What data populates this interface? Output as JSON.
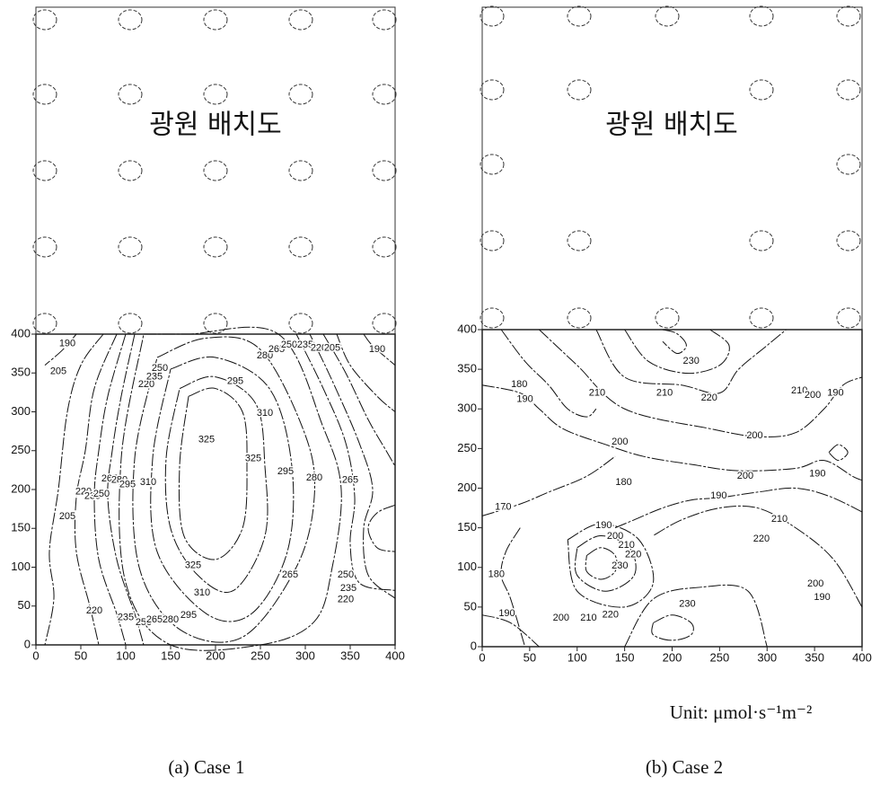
{
  "chart_data": [
    {
      "type": "contour",
      "title": "(a) Case 1",
      "inset_label": "광원 배치도",
      "xlim": [
        0,
        400
      ],
      "ylim": [
        0,
        400
      ],
      "xticks": [
        0,
        50,
        100,
        150,
        200,
        250,
        300,
        350,
        400
      ],
      "yticks": [
        0,
        50,
        100,
        150,
        200,
        250,
        300,
        350,
        400
      ],
      "contour_labels": {
        "x": [
          35,
          25,
          123,
          132,
          138,
          255,
          268,
          282,
          300,
          315,
          330,
          380,
          222,
          255,
          190,
          242,
          278,
          310,
          350,
          82,
          93,
          102,
          125,
          53,
          63,
          73,
          35,
          175,
          185,
          283,
          345,
          348,
          345,
          65,
          100,
          120,
          132,
          150,
          170
        ],
        "y": [
          388,
          352,
          335,
          345,
          356,
          372,
          380,
          386,
          386,
          382,
          382,
          380,
          339,
          298,
          264,
          240,
          223,
          215,
          212,
          214,
          212,
          206,
          209,
          197,
          191,
          194,
          165,
          102,
          67,
          90,
          90,
          73,
          58,
          44,
          35,
          29,
          32,
          32,
          38
        ],
        "values": [
          190,
          205,
          220,
          235,
          250,
          280,
          265,
          250,
          235,
          220,
          205,
          190,
          295,
          310,
          325,
          325,
          295,
          280,
          265,
          265,
          280,
          295,
          310,
          220,
          235,
          250,
          205,
          325,
          310,
          265,
          250,
          235,
          220,
          220,
          235,
          250,
          265,
          280,
          295
        ]
      },
      "contours": [
        {
          "level": 190,
          "x": [
            45,
            30,
            10
          ],
          "y": [
            400,
            380,
            360
          ]
        },
        {
          "level": 205,
          "x": [
            75,
            50,
            35,
            25,
            15,
            20,
            10
          ],
          "y": [
            400,
            360,
            300,
            200,
            120,
            60,
            0
          ]
        },
        {
          "level": 220,
          "x": [
            90,
            65,
            55,
            45,
            45,
            60,
            70
          ],
          "y": [
            400,
            330,
            250,
            190,
            120,
            50,
            0
          ]
        },
        {
          "level": 235,
          "x": [
            100,
            80,
            70,
            65,
            70,
            90,
            100
          ],
          "y": [
            400,
            320,
            250,
            190,
            110,
            40,
            0
          ]
        },
        {
          "level": 250,
          "x": [
            110,
            95,
            85,
            80,
            90,
            110,
            120
          ],
          "y": [
            400,
            320,
            250,
            190,
            110,
            40,
            0
          ]
        },
        {
          "level": 265,
          "x": [
            120,
            170,
            270,
            320,
            340,
            330,
            310,
            250,
            150,
            100,
            95,
            120
          ],
          "y": [
            400,
            400,
            400,
            280,
            200,
            100,
            30,
            0,
            0,
            80,
            240,
            400
          ]
        },
        {
          "level": 280,
          "x": [
            135,
            190,
            250,
            300,
            310,
            290,
            230,
            160,
            115,
            110,
            135
          ],
          "y": [
            370,
            395,
            380,
            270,
            190,
            100,
            10,
            20,
            100,
            240,
            370
          ]
        },
        {
          "level": 295,
          "x": [
            150,
            200,
            260,
            285,
            280,
            240,
            190,
            135,
            130,
            150
          ],
          "y": [
            355,
            370,
            330,
            230,
            120,
            40,
            40,
            120,
            240,
            355
          ]
        },
        {
          "level": 310,
          "x": [
            160,
            200,
            245,
            255,
            255,
            220,
            180,
            150,
            145,
            160
          ],
          "y": [
            330,
            345,
            310,
            230,
            140,
            70,
            90,
            150,
            240,
            330
          ]
        },
        {
          "level": 325,
          "x": [
            170,
            200,
            230,
            235,
            230,
            200,
            165,
            160,
            170
          ],
          "y": [
            320,
            330,
            300,
            230,
            150,
            110,
            140,
            230,
            320
          ]
        },
        {
          "level": 190,
          "x": [
            365,
            375,
            400
          ],
          "y": [
            400,
            385,
            360
          ]
        },
        {
          "level": 205,
          "x": [
            335,
            350,
            380,
            400
          ],
          "y": [
            400,
            360,
            320,
            300
          ]
        },
        {
          "level": 220,
          "x": [
            320,
            345,
            370,
            390,
            400
          ],
          "y": [
            400,
            350,
            290,
            250,
            230
          ]
        },
        {
          "level": 235,
          "x": [
            305,
            330,
            360,
            375,
            365,
            370,
            400
          ],
          "y": [
            400,
            340,
            260,
            200,
            150,
            90,
            60
          ]
        },
        {
          "level": 250,
          "x": [
            290,
            320,
            345,
            355,
            350,
            360,
            400
          ],
          "y": [
            400,
            330,
            260,
            190,
            130,
            80,
            70
          ]
        },
        {
          "level": 235,
          "x": [
            400,
            380,
            370,
            380,
            400
          ],
          "y": [
            180,
            170,
            150,
            125,
            120
          ]
        }
      ]
    },
    {
      "type": "contour",
      "title": "(b) Case 2",
      "inset_label": "광원 배치도",
      "unit_label": "Unit:  μmol·s⁻¹m⁻²",
      "xlim": [
        0,
        400
      ],
      "ylim": [
        0,
        400
      ],
      "xticks": [
        0,
        50,
        100,
        150,
        200,
        250,
        300,
        350,
        400
      ],
      "yticks": [
        0,
        50,
        100,
        150,
        200,
        250,
        300,
        350,
        400
      ],
      "contour_labels": {
        "x": [
          220,
          239,
          334,
          348,
          372,
          39,
          45,
          121,
          192,
          145,
          287,
          149,
          249,
          277,
          353,
          22,
          128,
          140,
          152,
          159,
          145,
          313,
          294,
          15,
          351,
          358,
          26,
          83,
          112,
          135,
          216
        ],
        "y": [
          360,
          314,
          323,
          317,
          320,
          331,
          312,
          320,
          320,
          258,
          266,
          207,
          190,
          215,
          218,
          176,
          153,
          139,
          128,
          116,
          102,
          161,
          136,
          91,
          79,
          62,
          42,
          36,
          36,
          40,
          54
        ],
        "values": [
          230,
          220,
          210,
          200,
          190,
          180,
          190,
          210,
          210,
          200,
          200,
          180,
          190,
          200,
          190,
          170,
          190,
          200,
          210,
          220,
          230,
          210,
          220,
          180,
          200,
          190,
          190,
          200,
          210,
          220,
          230
        ]
      },
      "contours": [
        {
          "level": 230,
          "x": [
            190,
            205,
            215,
            205,
            190
          ],
          "y": [
            400,
            395,
            380,
            370,
            385
          ]
        },
        {
          "level": 220,
          "x": [
            150,
            175,
            215,
            250,
            260,
            240
          ],
          "y": [
            400,
            360,
            345,
            355,
            380,
            400
          ]
        },
        {
          "level": 210,
          "x": [
            120,
            150,
            210,
            250,
            270,
            300,
            320
          ],
          "y": [
            400,
            340,
            330,
            320,
            350,
            380,
            400
          ]
        },
        {
          "level": 200,
          "x": [
            60,
            100,
            150,
            240,
            290,
            330,
            360,
            380,
            400
          ],
          "y": [
            400,
            355,
            300,
            275,
            265,
            270,
            300,
            330,
            340
          ]
        },
        {
          "level": 190,
          "x": [
            20,
            45,
            70,
            90,
            110,
            120
          ],
          "y": [
            400,
            360,
            330,
            300,
            290,
            300
          ]
        },
        {
          "level": 180,
          "x": [
            0,
            40,
            60,
            85,
            130,
            170,
            220,
            270,
            330,
            360,
            390,
            400
          ],
          "y": [
            330,
            320,
            300,
            275,
            255,
            240,
            230,
            222,
            225,
            235,
            215,
            210
          ]
        },
        {
          "level": 170,
          "x": [
            0,
            40,
            70,
            110,
            140
          ],
          "y": [
            165,
            180,
            195,
            215,
            240
          ]
        },
        {
          "level": 190,
          "x": [
            400,
            365,
            330,
            290,
            250,
            220,
            190,
            160,
            140
          ],
          "y": [
            170,
            190,
            200,
            195,
            188,
            185,
            175,
            160,
            150
          ]
        },
        {
          "level": 200,
          "x": [
            400,
            370,
            330,
            290,
            250,
            210,
            180
          ],
          "y": [
            50,
            110,
            150,
            175,
            175,
            160,
            140
          ]
        },
        {
          "level": 230,
          "x": [
            110,
            125,
            140,
            140,
            125,
            110,
            110
          ],
          "y": [
            115,
            125,
            115,
            95,
            85,
            95,
            115
          ]
        },
        {
          "level": 220,
          "x": [
            100,
            125,
            155,
            160,
            130,
            100,
            100
          ],
          "y": [
            125,
            140,
            125,
            90,
            70,
            90,
            125
          ]
        },
        {
          "level": 210,
          "x": [
            90,
            125,
            165,
            180,
            150,
            100,
            90
          ],
          "y": [
            135,
            155,
            135,
            80,
            50,
            70,
            135
          ]
        },
        {
          "level": 230,
          "x": [
            180,
            200,
            220,
            220,
            200,
            180,
            180
          ],
          "y": [
            30,
            40,
            30,
            15,
            8,
            15,
            30
          ]
        },
        {
          "level": 220,
          "x": [
            150,
            180,
            230,
            280,
            300
          ],
          "y": [
            0,
            60,
            75,
            70,
            0
          ]
        },
        {
          "level": 190,
          "x": [
            0,
            30,
            60
          ],
          "y": [
            40,
            30,
            0
          ]
        },
        {
          "level": 180,
          "x": [
            40,
            25,
            20,
            30,
            45
          ],
          "y": [
            150,
            120,
            90,
            60,
            0
          ]
        },
        {
          "level": 210,
          "x": [
            365,
            375,
            385,
            375,
            365
          ],
          "y": [
            245,
            255,
            245,
            235,
            245
          ]
        }
      ]
    }
  ]
}
